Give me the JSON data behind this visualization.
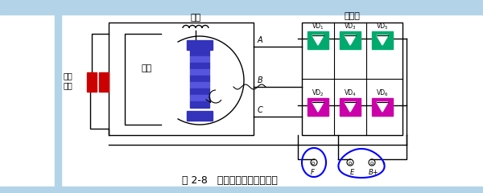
{
  "bg_color": "#ffffff",
  "header_color": "#b3d4e8",
  "left_bar_color": "#b3d4e8",
  "title": "图 2-8   交流发电机工作原理图",
  "label_dingzi": "定子",
  "label_zhuanzi": "转子",
  "label_huanjshua": "滑环\n电刷",
  "label_zhengliuqi": "整流器",
  "vd_top_labels": [
    "VD1",
    "VD3",
    "VD5"
  ],
  "vd_bottom_labels": [
    "VD2",
    "VD4",
    "VD6"
  ],
  "vd_top_color": "#00aa6e",
  "vd_bottom_color": "#cc00aa",
  "rotor_color_dark": "#3333bb",
  "rotor_color_mid": "#5555dd",
  "brush_color": "#cc0000",
  "line_color": "#000000",
  "label_A": "A",
  "label_B": "B",
  "label_C": "C",
  "label_F": "F",
  "label_E": "E",
  "label_Bplus": "B",
  "figsize": [
    6.0,
    2.4
  ],
  "dpi": 100
}
